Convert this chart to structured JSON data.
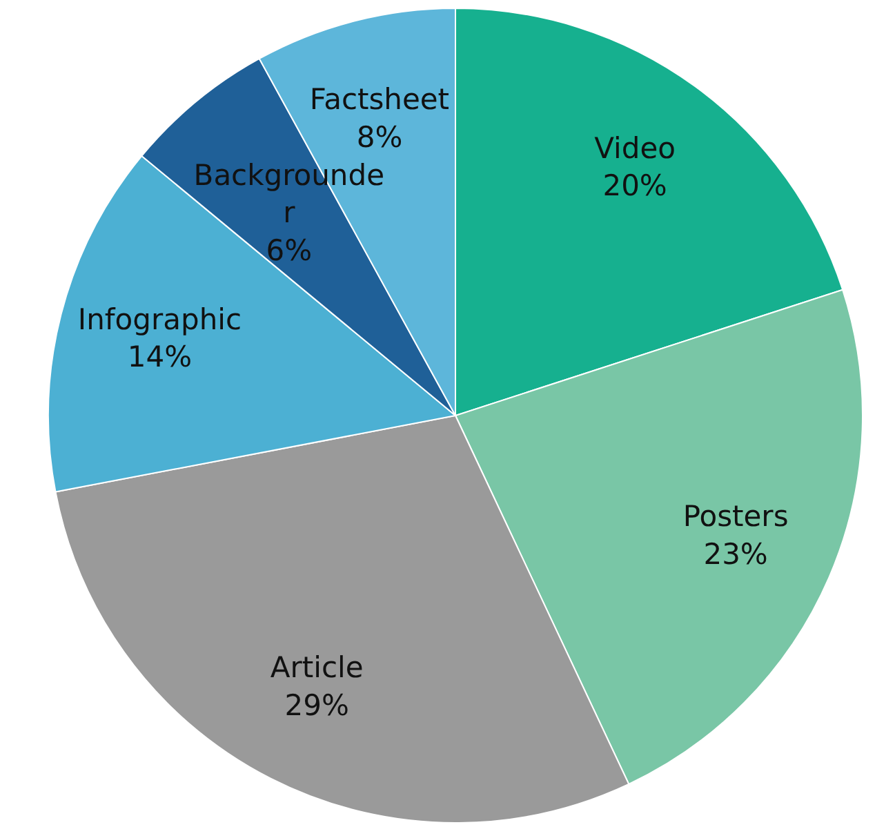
{
  "chart_data": {
    "type": "pie",
    "categories": [
      "Video",
      "Posters",
      "Article",
      "Infographic",
      "Backgrounder",
      "Factsheet"
    ],
    "values": [
      20,
      23,
      29,
      14,
      6,
      8
    ],
    "value_labels": [
      "20%",
      "23%",
      "29%",
      "14%",
      "6%",
      "8%"
    ],
    "colors": [
      "#16b08f",
      "#79c6a6",
      "#9a9a9a",
      "#4cb0d3",
      "#1f6098",
      "#5db6da"
    ],
    "legend": false
  }
}
